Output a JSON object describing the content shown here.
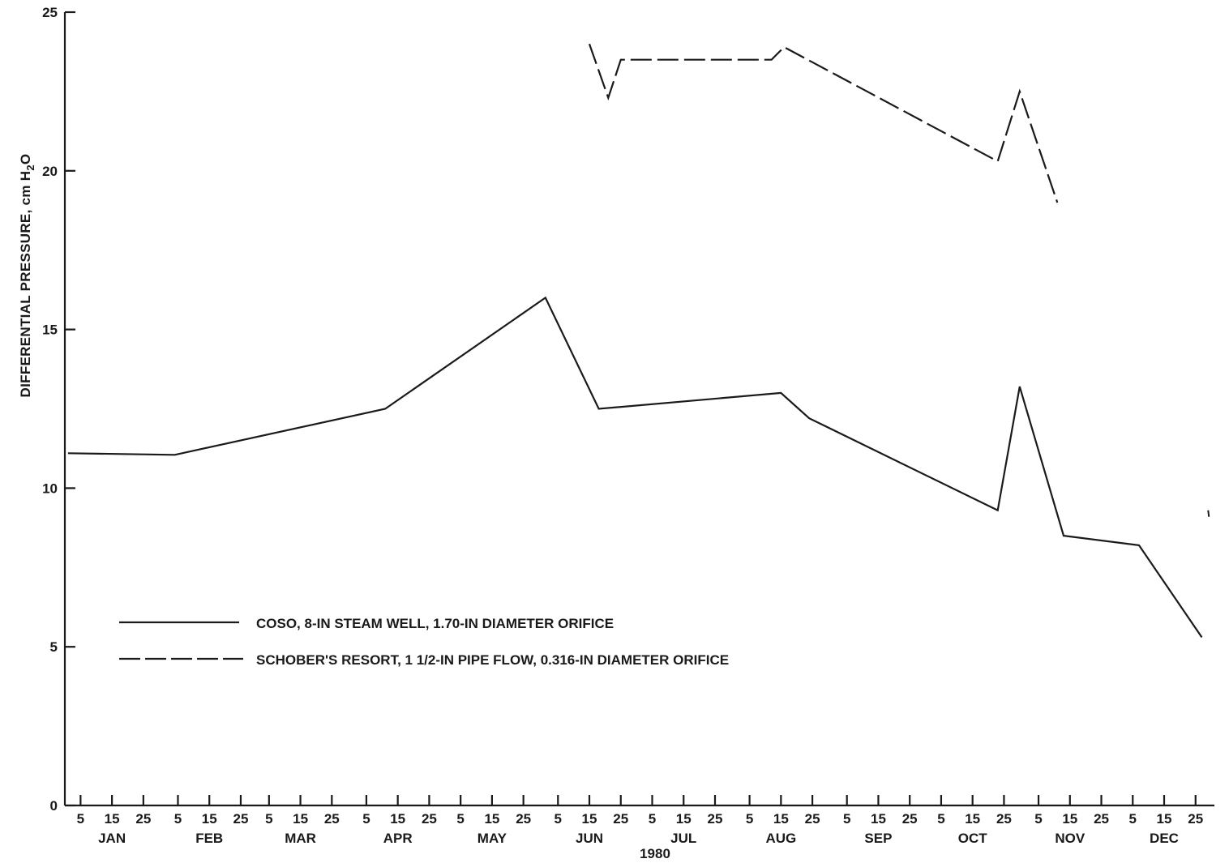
{
  "chart_data": {
    "type": "line",
    "title": "",
    "xlabel": "1980",
    "ylabel": "DIFFERENTIAL PRESSURE, cm H2O",
    "ylabel_parts": {
      "main": "DIFFERENTIAL PRESSURE, cm H",
      "sub": "2",
      "tail": "O"
    },
    "ylim": [
      0,
      25
    ],
    "y_ticks": [
      0,
      5,
      10,
      15,
      20,
      25
    ],
    "x_unit": "day of year 1980",
    "months": [
      "JAN",
      "FEB",
      "MAR",
      "APR",
      "MAY",
      "JUN",
      "JUL",
      "AUG",
      "SEP",
      "OCT",
      "NOV",
      "DEC"
    ],
    "day_ticks": [
      "5",
      "15",
      "25"
    ],
    "grid": false,
    "legend_position": "lower-left",
    "series": [
      {
        "name": "COSO, 8-IN STEAM WELL, 1.70-IN DIAMETER ORIFICE",
        "style": "solid",
        "x": [
          1,
          35,
          102,
          153,
          170,
          228,
          237,
          297,
          304,
          318,
          342,
          362
        ],
        "y": [
          11.1,
          11.05,
          12.5,
          16.0,
          12.5,
          13.0,
          12.2,
          9.3,
          13.2,
          8.5,
          8.2,
          5.3
        ]
      },
      {
        "name": "SCHOBER'S RESORT, 1 1/2-IN PIPE FLOW, 0.316-IN DIAMETER ORIFICE",
        "style": "dashed",
        "x": [
          167,
          173,
          177,
          225,
          229,
          297,
          304,
          316
        ],
        "y": [
          24.0,
          22.3,
          23.5,
          23.5,
          23.9,
          20.3,
          22.5,
          19.0
        ]
      }
    ],
    "stray_mark": {
      "x": 364,
      "y": 9.2
    }
  }
}
